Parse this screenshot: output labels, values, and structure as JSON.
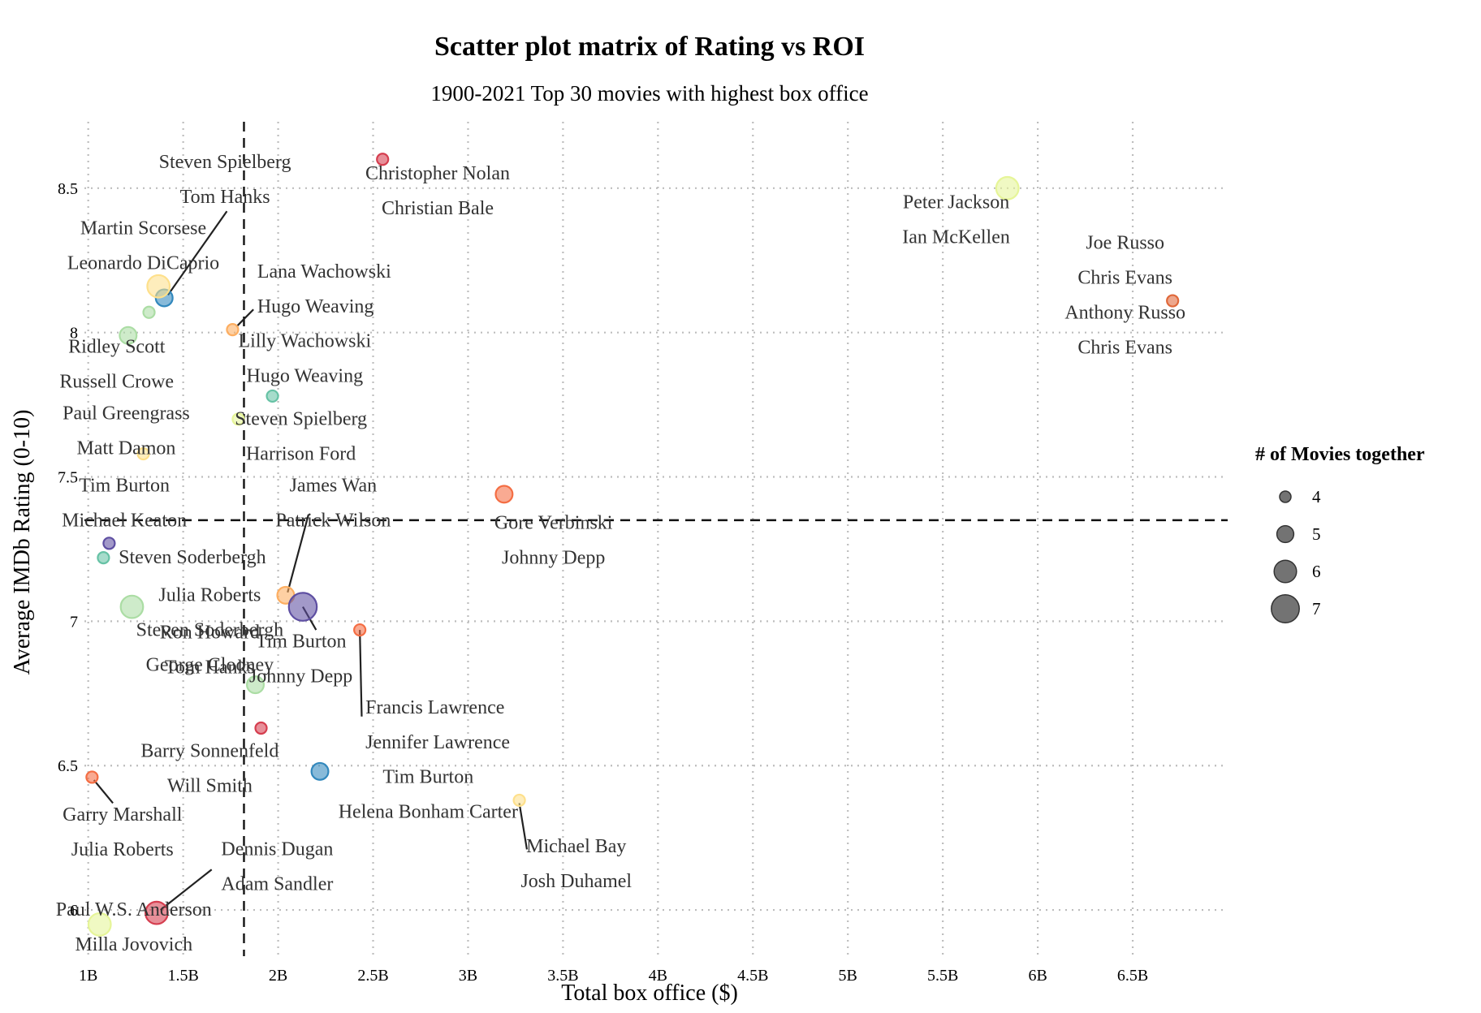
{
  "chart_data": {
    "type": "scatter",
    "title": "Scatter plot matrix of Rating vs ROI",
    "subtitle": "1900-2021 Top 30 movies with highest box office",
    "xlabel": "Total box office ($)",
    "ylabel": "Average IMDb Rating (0-10)",
    "xlim": [
      0.98,
      7.0
    ],
    "ylim": [
      5.84,
      8.73
    ],
    "x_ticks": [
      1,
      1.5,
      2,
      2.5,
      3,
      3.5,
      4,
      4.5,
      5,
      5.5,
      6,
      6.5
    ],
    "x_tick_labels": [
      "1B",
      "1.5B",
      "2B",
      "2.5B",
      "3B",
      "3.5B",
      "4B",
      "4.5B",
      "5B",
      "5.5B",
      "6B",
      "6.5B"
    ],
    "y_ticks": [
      6,
      6.5,
      7,
      7.5,
      8,
      8.5
    ],
    "y_tick_labels": [
      "6",
      "6.5",
      "7",
      "7.5",
      "8",
      "8.5"
    ],
    "grid": true,
    "reference_lines": {
      "vertical_x": 1.82,
      "horizontal_y": 7.35
    },
    "legend": {
      "title": "# of Movies together",
      "placement": "right",
      "sizes": [
        4,
        5,
        6,
        7
      ],
      "labels": [
        "4",
        "5",
        "6",
        "7"
      ]
    },
    "points": [
      {
        "x": 2.55,
        "y": 8.6,
        "size": 4,
        "color": "#d53e4f",
        "label_lines": [
          "Christopher Nolan",
          "Christian Bale"
        ],
        "lx": 2.84,
        "ly": 8.53,
        "anchor": "middle"
      },
      {
        "x": 5.84,
        "y": 8.5,
        "size": 6,
        "color": "#e6f598",
        "label_lines": [
          "Peter Jackson",
          "Ian McKellen"
        ],
        "lx": 5.57,
        "ly": 8.43,
        "anchor": "middle"
      },
      {
        "x": 6.71,
        "y": 8.11,
        "size": 4,
        "color": "#e0683a",
        "label_lines": [
          "Joe Russo",
          "Chris Evans",
          "Anthony Russo",
          "Chris Evans"
        ],
        "lx": 6.46,
        "ly": 8.29,
        "anchor": "middle"
      },
      {
        "x": 1.4,
        "y": 8.12,
        "size": 5,
        "color": "#3288bd",
        "label_lines": [
          "Steven Spielberg",
          "Tom Hanks"
        ],
        "lx": 1.72,
        "ly": 8.57,
        "anchor": "middle",
        "leader": [
          1.42,
          8.13,
          1.73,
          8.42
        ]
      },
      {
        "x": 1.37,
        "y": 8.16,
        "size": 6,
        "color": "#fee08b",
        "label_lines": [
          "Martin Scorsese",
          "Leonardo DiCaprio"
        ],
        "lx": 1.29,
        "ly": 8.34,
        "anchor": "middle"
      },
      {
        "x": 1.32,
        "y": 8.07,
        "size": 4,
        "color": "#abdda4",
        "label_lines": [],
        "lx": 0,
        "ly": 0,
        "anchor": "middle"
      },
      {
        "x": 1.76,
        "y": 8.01,
        "size": 4,
        "color": "#fdae61",
        "label_lines": [
          "Lana Wachowski",
          "Hugo Weaving"
        ],
        "lx": 1.89,
        "ly": 8.19,
        "anchor": "start",
        "leader": [
          1.78,
          8.02,
          1.87,
          8.08
        ]
      },
      {
        "x": 1.21,
        "y": 7.99,
        "size": 5,
        "color": "#abdda4",
        "label_lines": [
          "Ridley Scott",
          "Russell Crowe"
        ],
        "lx": 1.15,
        "ly": 7.93,
        "anchor": "middle"
      },
      {
        "x": 1.97,
        "y": 7.78,
        "size": 4,
        "color": "#66c2a5",
        "label_lines": [
          "Lilly Wachowski",
          "Hugo Weaving"
        ],
        "lx": 2.14,
        "ly": 7.95,
        "anchor": "middle"
      },
      {
        "x": 1.29,
        "y": 7.58,
        "size": 4,
        "color": "#fee08b",
        "label_lines": [
          "Paul Greengrass",
          "Matt Damon"
        ],
        "lx": 1.2,
        "ly": 7.7,
        "anchor": "middle"
      },
      {
        "x": 1.79,
        "y": 7.7,
        "size": 4,
        "color": "#e6f598",
        "label_lines": [
          "Steven Spielberg",
          "Harrison Ford"
        ],
        "lx": 2.12,
        "ly": 7.68,
        "anchor": "middle"
      },
      {
        "x": 3.19,
        "y": 7.44,
        "size": 5,
        "color": "#f46d43",
        "label_lines": [
          "Gore Verbinski",
          "Johnny Depp"
        ],
        "lx": 3.45,
        "ly": 7.32,
        "anchor": "middle"
      },
      {
        "x": 1.11,
        "y": 7.27,
        "size": 4,
        "color": "#5e4fa2",
        "label_lines": [
          "Tim Burton",
          "Michael Keaton"
        ],
        "lx": 1.19,
        "ly": 7.45,
        "anchor": "middle"
      },
      {
        "x": 1.08,
        "y": 7.22,
        "size": 4,
        "color": "#66c2a5",
        "label_lines": [
          "Steven Soderbergh"
        ],
        "lx": 1.16,
        "ly": 7.2,
        "anchor": "start"
      },
      {
        "x": 2.04,
        "y": 7.09,
        "size": 5,
        "color": "#fdae61",
        "label_lines": [
          "James Wan",
          "Patrick Wilson"
        ],
        "lx": 2.29,
        "ly": 7.45,
        "anchor": "middle",
        "leader": [
          2.05,
          7.1,
          2.16,
          7.37
        ]
      },
      {
        "x": 2.13,
        "y": 7.05,
        "size": 7,
        "color": "#5e4fa2",
        "label_lines": [
          "Tim Burton",
          "Johnny Depp"
        ],
        "lx": 2.12,
        "ly": 6.91,
        "anchor": "middle",
        "leader": [
          2.13,
          7.05,
          2.2,
          6.97
        ]
      },
      {
        "x": 1.23,
        "y": 7.05,
        "size": 6,
        "color": "#abdda4",
        "label_lines": [
          "Julia Roberts",
          "Steven Soderbergh",
          "George Clooney"
        ],
        "lx": 1.64,
        "ly": 7.07,
        "anchor": "middle"
      },
      {
        "x": 2.43,
        "y": 6.97,
        "size": 4,
        "color": "#f46d43",
        "label_lines": [
          "Francis Lawrence",
          "Jennifer Lawrence"
        ],
        "lx": 2.46,
        "ly": 6.68,
        "anchor": "start",
        "leader": [
          2.43,
          6.97,
          2.44,
          6.67
        ]
      },
      {
        "x": 1.88,
        "y": 6.78,
        "size": 5,
        "color": "#abdda4",
        "label_lines": [
          "Ron Howard",
          "Tom Hanks"
        ],
        "lx": 1.64,
        "ly": 6.94,
        "anchor": "middle"
      },
      {
        "x": 1.91,
        "y": 6.63,
        "size": 4,
        "color": "#d53e4f",
        "label_lines": [
          "Barry Sonnenfeld",
          "Will Smith"
        ],
        "lx": 1.64,
        "ly": 6.53,
        "anchor": "middle"
      },
      {
        "x": 2.22,
        "y": 6.48,
        "size": 5,
        "color": "#3288bd",
        "label_lines": [
          "Tim Burton",
          "Helena Bonham Carter"
        ],
        "lx": 2.79,
        "ly": 6.44,
        "anchor": "middle"
      },
      {
        "x": 1.02,
        "y": 6.46,
        "size": 4,
        "color": "#f46d43",
        "label_lines": [
          "Garry Marshall",
          "Julia Roberts"
        ],
        "lx": 1.18,
        "ly": 6.31,
        "anchor": "middle",
        "leader": [
          1.03,
          6.45,
          1.13,
          6.37
        ]
      },
      {
        "x": 3.27,
        "y": 6.38,
        "size": 4,
        "color": "#fee08b",
        "label_lines": [
          "Michael Bay",
          "Josh Duhamel"
        ],
        "lx": 3.57,
        "ly": 6.2,
        "anchor": "middle",
        "leader": [
          3.27,
          6.37,
          3.31,
          6.21
        ]
      },
      {
        "x": 1.36,
        "y": 5.99,
        "size": 6,
        "color": "#d53e4f",
        "label_lines": [
          "Dennis Dugan",
          "Adam Sandler"
        ],
        "lx": 1.7,
        "ly": 6.19,
        "anchor": "start",
        "leader": [
          1.38,
          6.0,
          1.65,
          6.14
        ]
      },
      {
        "x": 1.06,
        "y": 5.95,
        "size": 6,
        "color": "#e6f598",
        "label_lines": [
          "Paul W.S. Anderson",
          "Milla Jovovich"
        ],
        "lx": 1.24,
        "ly": 5.98,
        "anchor": "middle"
      }
    ]
  }
}
